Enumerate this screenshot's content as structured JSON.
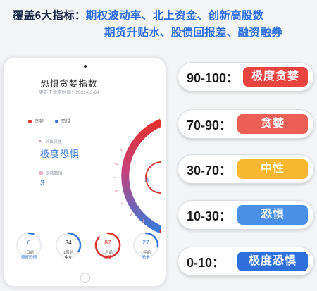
{
  "header": {
    "prefix": "覆盖6大指标：",
    "line1": "期权波动率、北上资金、创新高股数",
    "line2": "期货升贴水、股债回报差、融资融券"
  },
  "tablet": {
    "app_title": "恐惧贪婪指数",
    "app_subtitle": "更新于北京时间：2021-03-09",
    "legend": [
      {
        "label": "贪婪",
        "color": "#e0322f"
      },
      {
        "label": "恐惧",
        "color": "#3a78d8"
      }
    ],
    "metric_status_label": "指数属性",
    "metric_status_value": "极度恐惧",
    "metric_value_label": "指数数值",
    "metric_value": "3",
    "gauge_value": "3",
    "history": [
      {
        "value": "6",
        "period": "1日前",
        "state": "极度恐惧",
        "color": "#3a78d8",
        "level": 0.06
      },
      {
        "value": "34",
        "period": "1周前",
        "state": "中立",
        "color": "#1a1a1a",
        "level": 0.34
      },
      {
        "value": "87",
        "period": "1月前",
        "state": "贪婪",
        "color": "#e0322f",
        "level": 0.87
      },
      {
        "value": "27",
        "period": "1年前",
        "state": "恐惧",
        "color": "#3a78d8",
        "level": 0.27
      }
    ]
  },
  "levels": [
    {
      "range": "90-100：",
      "label": "极度贪婪",
      "color": "#e8433f"
    },
    {
      "range": "70-90：",
      "label": "贪婪",
      "color": "#ec5f56"
    },
    {
      "range": "30-70：",
      "label": "中性",
      "color": "#f7b731"
    },
    {
      "range": "10-30：",
      "label": "恐惧",
      "color": "#4a8fe8"
    },
    {
      "range": "0-10：",
      "label": "极度恐惧",
      "color": "#2f6fdc"
    }
  ]
}
